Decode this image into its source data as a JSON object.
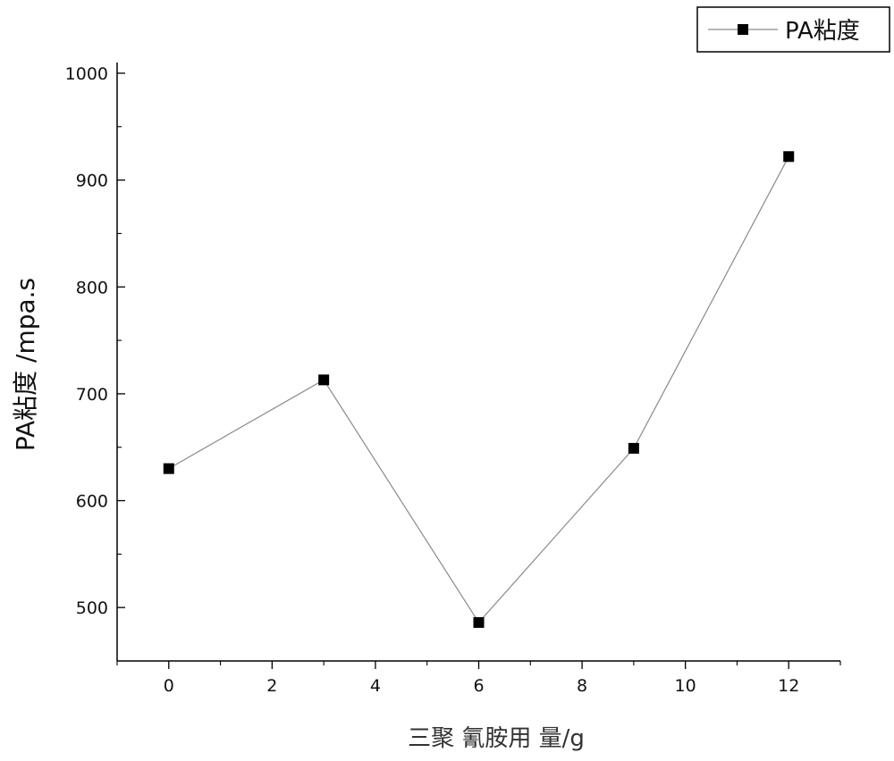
{
  "chart_data": {
    "type": "line",
    "title": "",
    "xlabel": "三聚 氰胺用 量/g",
    "ylabel": "PA粘度 /mpa.s",
    "xlim": [
      -1,
      13
    ],
    "ylim": [
      450,
      1010
    ],
    "x_ticks": [
      0,
      2,
      4,
      6,
      8,
      10,
      12
    ],
    "y_ticks": [
      500,
      600,
      700,
      800,
      900,
      1000
    ],
    "grid": false,
    "legend_position": "top-right",
    "series": [
      {
        "name": "PA粘度",
        "marker": "square",
        "color": "#000000",
        "line_color": "#8a8a8a",
        "x": [
          0,
          3,
          6,
          9,
          12
        ],
        "y": [
          630,
          713,
          486,
          649,
          922
        ]
      }
    ]
  }
}
